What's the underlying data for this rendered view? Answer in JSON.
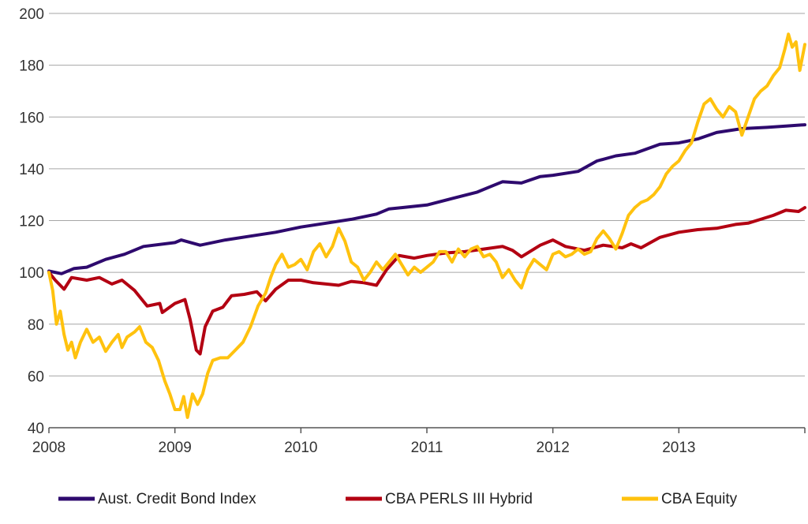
{
  "chart_data": {
    "type": "line",
    "title": "",
    "xlabel": "",
    "ylabel": "",
    "xlim": [
      2008.0,
      2014.0
    ],
    "ylim": [
      40,
      200
    ],
    "grid": "horizontal",
    "legend_position": "bottom",
    "x_ticks": [
      "2008",
      "2009",
      "2010",
      "2011",
      "2012",
      "2013"
    ],
    "x_tick_values": [
      2008,
      2009,
      2010,
      2011,
      2012,
      2013
    ],
    "y_ticks": [
      "40",
      "60",
      "80",
      "100",
      "120",
      "140",
      "160",
      "180",
      "200"
    ],
    "y_tick_values": [
      40,
      60,
      80,
      100,
      120,
      140,
      160,
      180,
      200
    ],
    "series": [
      {
        "name": "Aust. Credit Bond Index",
        "color": "#2e0a6e",
        "points": [
          [
            2008.0,
            100.5
          ],
          [
            2008.1,
            99.5
          ],
          [
            2008.2,
            101.5
          ],
          [
            2008.3,
            102.0
          ],
          [
            2008.45,
            105.0
          ],
          [
            2008.6,
            107.0
          ],
          [
            2008.75,
            110.0
          ],
          [
            2009.0,
            111.5
          ],
          [
            2009.05,
            112.5
          ],
          [
            2009.2,
            110.5
          ],
          [
            2009.4,
            112.5
          ],
          [
            2009.6,
            114.0
          ],
          [
            2009.8,
            115.5
          ],
          [
            2010.0,
            117.5
          ],
          [
            2010.2,
            119.0
          ],
          [
            2010.4,
            120.5
          ],
          [
            2010.6,
            122.5
          ],
          [
            2010.7,
            124.5
          ],
          [
            2010.8,
            125.0
          ],
          [
            2011.0,
            126.0
          ],
          [
            2011.2,
            128.5
          ],
          [
            2011.4,
            131.0
          ],
          [
            2011.5,
            133.0
          ],
          [
            2011.6,
            135.0
          ],
          [
            2011.75,
            134.5
          ],
          [
            2011.9,
            137.0
          ],
          [
            2012.0,
            137.5
          ],
          [
            2012.2,
            139.0
          ],
          [
            2012.35,
            143.0
          ],
          [
            2012.5,
            145.0
          ],
          [
            2012.65,
            146.0
          ],
          [
            2012.85,
            149.5
          ],
          [
            2013.0,
            150.0
          ],
          [
            2013.15,
            151.5
          ],
          [
            2013.3,
            154.0
          ],
          [
            2013.5,
            155.5
          ],
          [
            2013.7,
            156.0
          ],
          [
            2013.85,
            156.5
          ],
          [
            2014.0,
            157.0
          ]
        ]
      },
      {
        "name": "CBA PERLS III Hybrid",
        "color": "#b30012",
        "points": [
          [
            2008.0,
            100.0
          ],
          [
            2008.05,
            97.0
          ],
          [
            2008.12,
            93.5
          ],
          [
            2008.18,
            98.0
          ],
          [
            2008.3,
            97.0
          ],
          [
            2008.4,
            98.0
          ],
          [
            2008.5,
            95.5
          ],
          [
            2008.58,
            97.0
          ],
          [
            2008.68,
            93.0
          ],
          [
            2008.78,
            87.0
          ],
          [
            2008.88,
            88.0
          ],
          [
            2008.9,
            84.5
          ],
          [
            2009.0,
            88.0
          ],
          [
            2009.08,
            89.5
          ],
          [
            2009.12,
            82.0
          ],
          [
            2009.17,
            70.0
          ],
          [
            2009.2,
            68.5
          ],
          [
            2009.24,
            79.0
          ],
          [
            2009.3,
            85.0
          ],
          [
            2009.38,
            86.5
          ],
          [
            2009.45,
            91.0
          ],
          [
            2009.55,
            91.5
          ],
          [
            2009.65,
            92.5
          ],
          [
            2009.72,
            89.0
          ],
          [
            2009.8,
            93.5
          ],
          [
            2009.9,
            97.0
          ],
          [
            2010.0,
            97.0
          ],
          [
            2010.1,
            96.0
          ],
          [
            2010.2,
            95.5
          ],
          [
            2010.3,
            95.0
          ],
          [
            2010.4,
            96.5
          ],
          [
            2010.5,
            96.0
          ],
          [
            2010.6,
            95.0
          ],
          [
            2010.68,
            101.0
          ],
          [
            2010.78,
            106.5
          ],
          [
            2010.9,
            105.5
          ],
          [
            2011.0,
            106.5
          ],
          [
            2011.15,
            107.5
          ],
          [
            2011.3,
            108.0
          ],
          [
            2011.45,
            109.0
          ],
          [
            2011.6,
            110.0
          ],
          [
            2011.68,
            108.5
          ],
          [
            2011.75,
            106.0
          ],
          [
            2011.9,
            110.5
          ],
          [
            2012.0,
            112.5
          ],
          [
            2012.1,
            110.0
          ],
          [
            2012.25,
            108.5
          ],
          [
            2012.4,
            110.5
          ],
          [
            2012.55,
            109.5
          ],
          [
            2012.62,
            111.0
          ],
          [
            2012.7,
            109.5
          ],
          [
            2012.85,
            113.5
          ],
          [
            2013.0,
            115.5
          ],
          [
            2013.15,
            116.5
          ],
          [
            2013.3,
            117.0
          ],
          [
            2013.45,
            118.5
          ],
          [
            2013.55,
            119.0
          ],
          [
            2013.65,
            120.5
          ],
          [
            2013.75,
            122.0
          ],
          [
            2013.85,
            124.0
          ],
          [
            2013.95,
            123.5
          ],
          [
            2014.0,
            125.0
          ]
        ]
      },
      {
        "name": "CBA Equity",
        "color": "#ffc20e",
        "points": [
          [
            2008.0,
            100.0
          ],
          [
            2008.03,
            93.0
          ],
          [
            2008.06,
            80.0
          ],
          [
            2008.09,
            85.0
          ],
          [
            2008.12,
            76.0
          ],
          [
            2008.15,
            70.0
          ],
          [
            2008.18,
            73.0
          ],
          [
            2008.21,
            67.0
          ],
          [
            2008.25,
            73.0
          ],
          [
            2008.3,
            78.0
          ],
          [
            2008.35,
            73.0
          ],
          [
            2008.4,
            75.0
          ],
          [
            2008.45,
            69.5
          ],
          [
            2008.5,
            73.0
          ],
          [
            2008.55,
            76.0
          ],
          [
            2008.58,
            71.0
          ],
          [
            2008.62,
            75.0
          ],
          [
            2008.68,
            77.0
          ],
          [
            2008.72,
            79.0
          ],
          [
            2008.77,
            73.0
          ],
          [
            2008.82,
            71.0
          ],
          [
            2008.87,
            66.0
          ],
          [
            2008.92,
            58.0
          ],
          [
            2008.96,
            53.0
          ],
          [
            2009.0,
            47.0
          ],
          [
            2009.04,
            47.0
          ],
          [
            2009.07,
            52.0
          ],
          [
            2009.1,
            44.0
          ],
          [
            2009.14,
            53.0
          ],
          [
            2009.18,
            49.0
          ],
          [
            2009.22,
            53.0
          ],
          [
            2009.26,
            61.0
          ],
          [
            2009.3,
            66.0
          ],
          [
            2009.36,
            67.0
          ],
          [
            2009.42,
            67.0
          ],
          [
            2009.48,
            70.0
          ],
          [
            2009.54,
            73.0
          ],
          [
            2009.6,
            79.0
          ],
          [
            2009.66,
            87.0
          ],
          [
            2009.72,
            92.0
          ],
          [
            2009.76,
            98.0
          ],
          [
            2009.8,
            103.0
          ],
          [
            2009.85,
            107.0
          ],
          [
            2009.9,
            102.0
          ],
          [
            2009.95,
            103.0
          ],
          [
            2010.0,
            105.0
          ],
          [
            2010.05,
            101.0
          ],
          [
            2010.1,
            108.0
          ],
          [
            2010.15,
            111.0
          ],
          [
            2010.2,
            106.0
          ],
          [
            2010.25,
            110.0
          ],
          [
            2010.3,
            117.0
          ],
          [
            2010.35,
            112.0
          ],
          [
            2010.4,
            104.0
          ],
          [
            2010.45,
            102.0
          ],
          [
            2010.5,
            97.0
          ],
          [
            2010.55,
            100.0
          ],
          [
            2010.6,
            104.0
          ],
          [
            2010.65,
            101.0
          ],
          [
            2010.7,
            104.0
          ],
          [
            2010.75,
            107.0
          ],
          [
            2010.8,
            103.0
          ],
          [
            2010.85,
            99.0
          ],
          [
            2010.9,
            102.0
          ],
          [
            2010.95,
            100.0
          ],
          [
            2011.0,
            102.0
          ],
          [
            2011.05,
            104.0
          ],
          [
            2011.1,
            108.0
          ],
          [
            2011.15,
            108.0
          ],
          [
            2011.2,
            104.0
          ],
          [
            2011.25,
            109.0
          ],
          [
            2011.3,
            106.0
          ],
          [
            2011.35,
            109.0
          ],
          [
            2011.4,
            110.0
          ],
          [
            2011.45,
            106.0
          ],
          [
            2011.5,
            107.0
          ],
          [
            2011.55,
            104.0
          ],
          [
            2011.6,
            98.0
          ],
          [
            2011.65,
            101.0
          ],
          [
            2011.7,
            97.0
          ],
          [
            2011.75,
            94.0
          ],
          [
            2011.8,
            101.0
          ],
          [
            2011.85,
            105.0
          ],
          [
            2011.9,
            103.0
          ],
          [
            2011.95,
            101.0
          ],
          [
            2012.0,
            107.0
          ],
          [
            2012.05,
            108.0
          ],
          [
            2012.1,
            106.0
          ],
          [
            2012.15,
            107.0
          ],
          [
            2012.2,
            109.0
          ],
          [
            2012.25,
            107.0
          ],
          [
            2012.3,
            108.0
          ],
          [
            2012.35,
            113.0
          ],
          [
            2012.4,
            116.0
          ],
          [
            2012.45,
            113.0
          ],
          [
            2012.5,
            109.0
          ],
          [
            2012.55,
            115.0
          ],
          [
            2012.6,
            122.0
          ],
          [
            2012.65,
            125.0
          ],
          [
            2012.7,
            127.0
          ],
          [
            2012.75,
            128.0
          ],
          [
            2012.8,
            130.0
          ],
          [
            2012.85,
            133.0
          ],
          [
            2012.9,
            138.0
          ],
          [
            2012.95,
            141.0
          ],
          [
            2013.0,
            143.0
          ],
          [
            2013.05,
            147.0
          ],
          [
            2013.1,
            150.0
          ],
          [
            2013.15,
            158.0
          ],
          [
            2013.2,
            165.0
          ],
          [
            2013.25,
            167.0
          ],
          [
            2013.3,
            163.0
          ],
          [
            2013.35,
            160.0
          ],
          [
            2013.4,
            164.0
          ],
          [
            2013.45,
            162.0
          ],
          [
            2013.5,
            153.0
          ],
          [
            2013.55,
            160.0
          ],
          [
            2013.6,
            167.0
          ],
          [
            2013.65,
            170.0
          ],
          [
            2013.7,
            172.0
          ],
          [
            2013.75,
            176.0
          ],
          [
            2013.8,
            179.0
          ],
          [
            2013.84,
            186.0
          ],
          [
            2013.87,
            192.0
          ],
          [
            2013.9,
            187.0
          ],
          [
            2013.93,
            189.0
          ],
          [
            2013.96,
            178.0
          ],
          [
            2014.0,
            188.0
          ]
        ]
      }
    ]
  }
}
